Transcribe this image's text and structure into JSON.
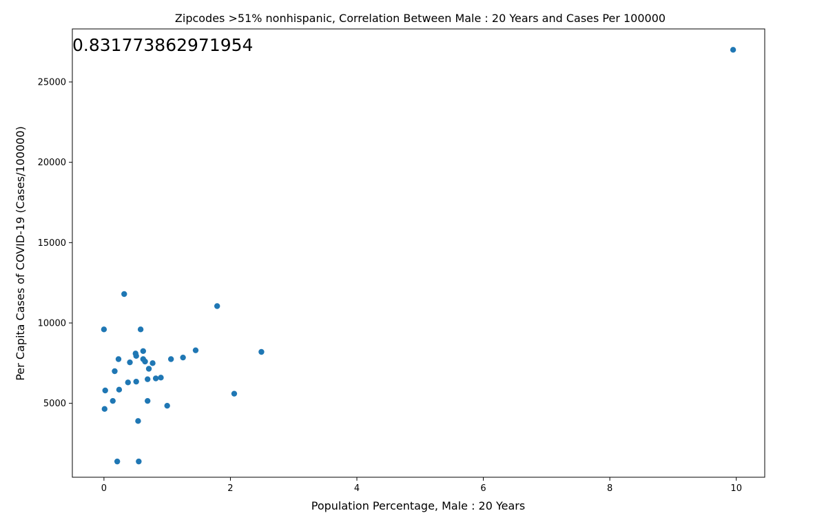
{
  "chart_data": {
    "type": "scatter",
    "title": "Zipcodes  >51% nonhispanic, Correlation Between Male : 20 Years and Cases Per 100000",
    "xlabel": "Population Percentage, Male : 20 Years",
    "ylabel": "Per Capita Cases of COVID-19 (Cases/100000)",
    "annotation": "0.831773862971954",
    "xlim": [
      -0.5,
      10.45
    ],
    "ylim": [
      400,
      28300
    ],
    "x_ticks": [
      0,
      2,
      4,
      6,
      8,
      10
    ],
    "x_tick_labels": [
      "0",
      "2",
      "4",
      "6",
      "8",
      "10"
    ],
    "y_ticks": [
      5000,
      10000,
      15000,
      20000,
      25000
    ],
    "y_tick_labels": [
      "5000",
      "10000",
      "15000",
      "20000",
      "25000"
    ],
    "grid": false,
    "marker_color": "#1f77b4",
    "points": [
      {
        "x": 0.0,
        "y": 9600
      },
      {
        "x": 0.01,
        "y": 4650
      },
      {
        "x": 0.02,
        "y": 5800
      },
      {
        "x": 0.14,
        "y": 5150
      },
      {
        "x": 0.17,
        "y": 7000
      },
      {
        "x": 0.21,
        "y": 1380
      },
      {
        "x": 0.23,
        "y": 7750
      },
      {
        "x": 0.24,
        "y": 5850
      },
      {
        "x": 0.32,
        "y": 11800
      },
      {
        "x": 0.38,
        "y": 6300
      },
      {
        "x": 0.41,
        "y": 7550
      },
      {
        "x": 0.5,
        "y": 8100
      },
      {
        "x": 0.51,
        "y": 7950
      },
      {
        "x": 0.51,
        "y": 6350
      },
      {
        "x": 0.54,
        "y": 3900
      },
      {
        "x": 0.55,
        "y": 1380
      },
      {
        "x": 0.58,
        "y": 9600
      },
      {
        "x": 0.62,
        "y": 8250
      },
      {
        "x": 0.62,
        "y": 7750
      },
      {
        "x": 0.65,
        "y": 7600
      },
      {
        "x": 0.69,
        "y": 6500
      },
      {
        "x": 0.69,
        "y": 5150
      },
      {
        "x": 0.71,
        "y": 7150
      },
      {
        "x": 0.77,
        "y": 7500
      },
      {
        "x": 0.82,
        "y": 6550
      },
      {
        "x": 0.9,
        "y": 6600
      },
      {
        "x": 1.0,
        "y": 4850
      },
      {
        "x": 1.06,
        "y": 7750
      },
      {
        "x": 1.25,
        "y": 7850
      },
      {
        "x": 1.45,
        "y": 8300
      },
      {
        "x": 1.79,
        "y": 11050
      },
      {
        "x": 2.06,
        "y": 5600
      },
      {
        "x": 2.49,
        "y": 8200
      },
      {
        "x": 9.95,
        "y": 27000
      }
    ]
  }
}
